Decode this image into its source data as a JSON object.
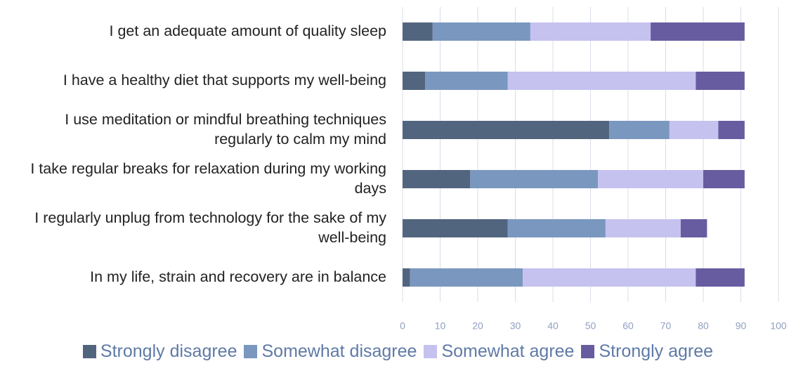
{
  "chart_data": {
    "type": "stacked_bar_horizontal",
    "categories": [
      "I get an adequate amount of quality sleep",
      "I have a healthy diet that supports my well-being",
      "I use meditation or mindful breathing techniques regularly to calm my mind",
      "I take regular breaks for relaxation during my working days",
      "I regularly unplug from technology for the sake of my well-being",
      "In my life, strain and recovery are in balance"
    ],
    "series": [
      {
        "name": "Strongly disagree",
        "color": "#52657f",
        "values": [
          8,
          6,
          55,
          18,
          28,
          2
        ]
      },
      {
        "name": "Somewhat disagree",
        "color": "#7a97bf",
        "values": [
          26,
          22,
          16,
          34,
          26,
          30
        ]
      },
      {
        "name": "Somewhat agree",
        "color": "#c5c2ef",
        "values": [
          32,
          50,
          13,
          28,
          20,
          46
        ]
      },
      {
        "name": "Strongly agree",
        "color": "#675ca0",
        "values": [
          25,
          13,
          7,
          11,
          7,
          13
        ]
      }
    ],
    "xlim": [
      0,
      100
    ],
    "xticks": [
      0,
      10,
      20,
      30,
      40,
      50,
      60,
      70,
      80,
      90,
      100
    ],
    "grid": true,
    "legend": "bottom"
  }
}
